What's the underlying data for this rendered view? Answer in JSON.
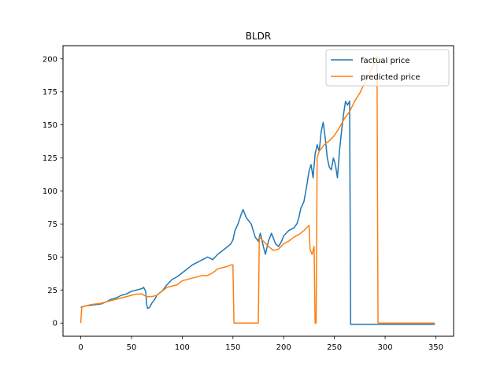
{
  "chart_data": {
    "type": "line",
    "title": "BLDR",
    "xlabel": "",
    "ylabel": "",
    "xlim": [
      -17.5,
      367.5
    ],
    "ylim": [
      -10,
      210
    ],
    "xticks": [
      0,
      50,
      100,
      150,
      200,
      250,
      300,
      350
    ],
    "yticks": [
      0,
      25,
      50,
      75,
      100,
      125,
      150,
      175,
      200
    ],
    "grid": false,
    "legend_position": "upper right",
    "series": [
      {
        "name": "factual price",
        "color": "#1f77b4",
        "points": [
          [
            0,
            12
          ],
          [
            5,
            13
          ],
          [
            10,
            13.5
          ],
          [
            15,
            14
          ],
          [
            20,
            14.5
          ],
          [
            25,
            16
          ],
          [
            30,
            18
          ],
          [
            35,
            19
          ],
          [
            40,
            21
          ],
          [
            45,
            22
          ],
          [
            50,
            24
          ],
          [
            55,
            25
          ],
          [
            60,
            26
          ],
          [
            62,
            27
          ],
          [
            64,
            24
          ],
          [
            65,
            14
          ],
          [
            66,
            11
          ],
          [
            68,
            12
          ],
          [
            70,
            15
          ],
          [
            73,
            18
          ],
          [
            75,
            21
          ],
          [
            78,
            23
          ],
          [
            80,
            24
          ],
          [
            85,
            29
          ],
          [
            90,
            33
          ],
          [
            95,
            35
          ],
          [
            100,
            38
          ],
          [
            105,
            41
          ],
          [
            110,
            44
          ],
          [
            115,
            46
          ],
          [
            120,
            48
          ],
          [
            125,
            50
          ],
          [
            130,
            48
          ],
          [
            135,
            52
          ],
          [
            140,
            55
          ],
          [
            145,
            58
          ],
          [
            148,
            60
          ],
          [
            150,
            63
          ],
          [
            152,
            70
          ],
          [
            155,
            75
          ],
          [
            158,
            82
          ],
          [
            160,
            86
          ],
          [
            163,
            80
          ],
          [
            165,
            78
          ],
          [
            168,
            75
          ],
          [
            170,
            70
          ],
          [
            172,
            65
          ],
          [
            175,
            62
          ],
          [
            177,
            68
          ],
          [
            180,
            58
          ],
          [
            182,
            52
          ],
          [
            185,
            62
          ],
          [
            188,
            68
          ],
          [
            190,
            64
          ],
          [
            192,
            60
          ],
          [
            195,
            58
          ],
          [
            198,
            62
          ],
          [
            200,
            66
          ],
          [
            205,
            70
          ],
          [
            210,
            72
          ],
          [
            213,
            75
          ],
          [
            215,
            80
          ],
          [
            217,
            87
          ],
          [
            220,
            92
          ],
          [
            223,
            105
          ],
          [
            225,
            115
          ],
          [
            227,
            120
          ],
          [
            229,
            110
          ],
          [
            231,
            128
          ],
          [
            233,
            135
          ],
          [
            235,
            130
          ],
          [
            237,
            145
          ],
          [
            239,
            152
          ],
          [
            241,
            140
          ],
          [
            243,
            125
          ],
          [
            245,
            118
          ],
          [
            247,
            116
          ],
          [
            249,
            125
          ],
          [
            251,
            120
          ],
          [
            253,
            110
          ],
          [
            255,
            130
          ],
          [
            257,
            145
          ],
          [
            259,
            158
          ],
          [
            261,
            168
          ],
          [
            263,
            165
          ],
          [
            265,
            168
          ],
          [
            266,
            -1
          ],
          [
            270,
            -1
          ],
          [
            300,
            -1
          ],
          [
            349,
            -1
          ]
        ]
      },
      {
        "name": "predicted price",
        "color": "#ff7f0e",
        "points": [
          [
            0,
            0
          ],
          [
            1,
            12
          ],
          [
            5,
            13
          ],
          [
            10,
            14
          ],
          [
            20,
            15
          ],
          [
            30,
            17
          ],
          [
            40,
            19
          ],
          [
            50,
            21
          ],
          [
            55,
            22
          ],
          [
            60,
            22
          ],
          [
            65,
            20
          ],
          [
            70,
            20
          ],
          [
            75,
            21
          ],
          [
            80,
            24
          ],
          [
            85,
            27
          ],
          [
            90,
            28
          ],
          [
            95,
            29
          ],
          [
            100,
            32
          ],
          [
            110,
            34
          ],
          [
            120,
            36
          ],
          [
            125,
            36
          ],
          [
            130,
            38
          ],
          [
            135,
            41
          ],
          [
            140,
            42
          ],
          [
            145,
            43
          ],
          [
            148,
            44
          ],
          [
            150,
            44
          ],
          [
            151,
            0
          ],
          [
            175,
            0
          ],
          [
            176,
            65
          ],
          [
            180,
            62
          ],
          [
            185,
            58
          ],
          [
            190,
            55
          ],
          [
            195,
            56
          ],
          [
            200,
            60
          ],
          [
            205,
            62
          ],
          [
            210,
            65
          ],
          [
            215,
            67
          ],
          [
            220,
            70
          ],
          [
            225,
            74
          ],
          [
            226,
            56
          ],
          [
            228,
            52
          ],
          [
            230,
            58
          ],
          [
            231,
            0
          ],
          [
            232,
            0
          ],
          [
            233,
            125
          ],
          [
            235,
            130
          ],
          [
            240,
            135
          ],
          [
            245,
            138
          ],
          [
            250,
            142
          ],
          [
            255,
            148
          ],
          [
            260,
            155
          ],
          [
            265,
            160
          ],
          [
            270,
            168
          ],
          [
            275,
            174
          ],
          [
            280,
            182
          ],
          [
            285,
            190
          ],
          [
            290,
            198
          ],
          [
            292,
            202
          ],
          [
            293,
            0
          ],
          [
            300,
            0
          ],
          [
            349,
            0
          ]
        ]
      }
    ]
  }
}
